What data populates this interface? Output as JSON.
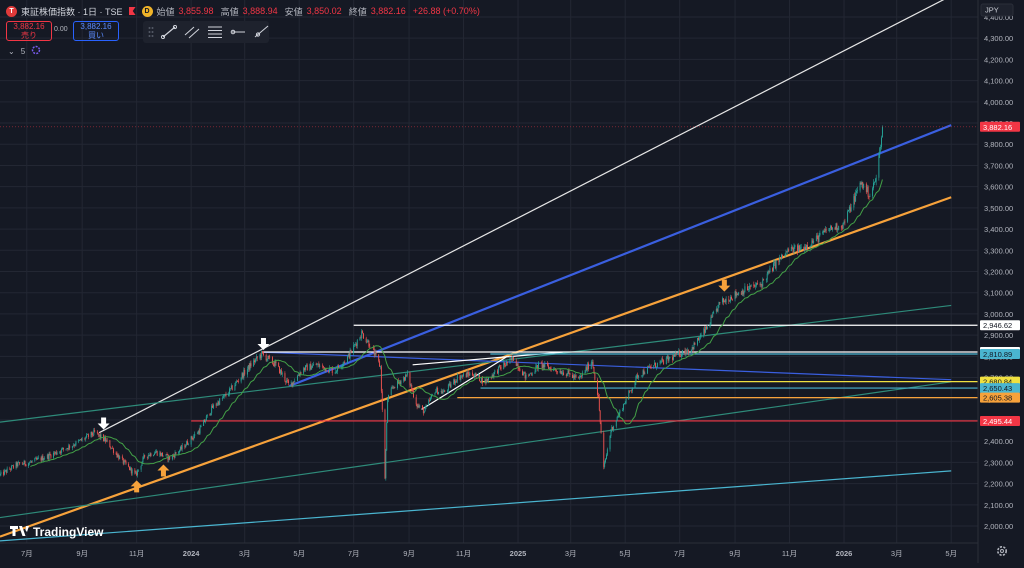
{
  "header": {
    "symbol": "東証株価指数 · 1日 · TSE",
    "ohlc": [
      {
        "label": "始値",
        "value": "3,855.98"
      },
      {
        "label": "高値",
        "value": "3,888.94"
      },
      {
        "label": "安値",
        "value": "3,850.02"
      },
      {
        "label": "終値",
        "value": "3,882.16"
      }
    ],
    "change": "+26.88 (+0.70%)",
    "sell_price": "3,882.16",
    "sell_label": "売り",
    "buy_price": "3,882.16",
    "buy_label": "買い",
    "spread": "0.00",
    "indicator_count": "5",
    "currency": "JPY",
    "watermark": "TradingView"
  },
  "colors": {
    "background": "#151924",
    "grid": "#232733",
    "up": "#26a69a",
    "down": "#ef5350",
    "white_channel": "#e6e6e6",
    "blue_channel": "#3a5fe0",
    "orange_channel": "#f7a23b",
    "teal_channel": "#2e8b7a",
    "cyan_channel": "#4ab5d0",
    "ma": "#43a047",
    "marker_white": "#ffffff",
    "marker_orange": "#f7a23b"
  },
  "chart_data": {
    "type": "candlestick",
    "title": "",
    "xlabel": "",
    "ylabel": "",
    "ylim": [
      1920,
      4480
    ],
    "y_ticks": [
      "2,000.00",
      "2,100.00",
      "2,200.00",
      "2,300.00",
      "2,400.00",
      "2,500.00",
      "2,600.00",
      "2,700.00",
      "2,800.00",
      "2,900.00",
      "3,000.00",
      "3,100.00",
      "3,200.00",
      "3,300.00",
      "3,400.00",
      "3,500.00",
      "3,600.00",
      "3,700.00",
      "3,800.00",
      "3,900.00",
      "4,000.00",
      "4,100.00",
      "4,200.00",
      "4,300.00",
      "4,400.00"
    ],
    "x_ticks": [
      {
        "label": "7月",
        "date": "2023-07-01"
      },
      {
        "label": "9月",
        "date": "2023-09-01"
      },
      {
        "label": "11月",
        "date": "2023-11-01"
      },
      {
        "label": "2024",
        "date": "2024-01-01",
        "bold": true
      },
      {
        "label": "3月",
        "date": "2024-03-01"
      },
      {
        "label": "5月",
        "date": "2024-05-01"
      },
      {
        "label": "7月",
        "date": "2024-07-01"
      },
      {
        "label": "9月",
        "date": "2024-09-01"
      },
      {
        "label": "11月",
        "date": "2024-11-01"
      },
      {
        "label": "2025",
        "date": "2025-01-01",
        "bold": true
      },
      {
        "label": "3月",
        "date": "2025-03-01"
      },
      {
        "label": "5月",
        "date": "2025-05-01"
      },
      {
        "label": "7月",
        "date": "2025-07-01"
      },
      {
        "label": "9月",
        "date": "2025-09-01"
      },
      {
        "label": "11月",
        "date": "2025-11-01"
      },
      {
        "label": "2026",
        "date": "2026-01-01",
        "bold": true
      },
      {
        "label": "3月",
        "date": "2026-03-01"
      },
      {
        "label": "5月",
        "date": "2026-05-01"
      }
    ],
    "price_anchors": [
      [
        "2023-06-01",
        2240
      ],
      [
        "2023-06-20",
        2290
      ],
      [
        "2023-07-05",
        2300
      ],
      [
        "2023-07-25",
        2330
      ],
      [
        "2023-08-10",
        2360
      ],
      [
        "2023-08-25",
        2390
      ],
      [
        "2023-09-15",
        2440
      ],
      [
        "2023-09-28",
        2400
      ],
      [
        "2023-10-15",
        2310
      ],
      [
        "2023-10-31",
        2240
      ],
      [
        "2023-11-10",
        2330
      ],
      [
        "2023-11-22",
        2350
      ],
      [
        "2023-12-08",
        2320
      ],
      [
        "2023-12-20",
        2360
      ],
      [
        "2024-01-10",
        2450
      ],
      [
        "2024-01-25",
        2560
      ],
      [
        "2024-02-10",
        2620
      ],
      [
        "2024-02-25",
        2700
      ],
      [
        "2024-03-10",
        2770
      ],
      [
        "2024-03-20",
        2810
      ],
      [
        "2024-04-05",
        2760
      ],
      [
        "2024-04-20",
        2660
      ],
      [
        "2024-05-05",
        2740
      ],
      [
        "2024-05-20",
        2760
      ],
      [
        "2024-06-10",
        2730
      ],
      [
        "2024-06-25",
        2800
      ],
      [
        "2024-07-10",
        2910
      ],
      [
        "2024-07-20",
        2850
      ],
      [
        "2024-07-31",
        2750
      ],
      [
        "2024-08-05",
        2230
      ],
      [
        "2024-08-08",
        2600
      ],
      [
        "2024-08-15",
        2660
      ],
      [
        "2024-08-30",
        2710
      ],
      [
        "2024-09-10",
        2570
      ],
      [
        "2024-09-18",
        2540
      ],
      [
        "2024-09-30",
        2640
      ],
      [
        "2024-10-10",
        2630
      ],
      [
        "2024-10-25",
        2700
      ],
      [
        "2024-11-10",
        2720
      ],
      [
        "2024-11-25",
        2680
      ],
      [
        "2024-12-10",
        2740
      ],
      [
        "2024-12-27",
        2790
      ],
      [
        "2025-01-10",
        2700
      ],
      [
        "2025-01-25",
        2760
      ],
      [
        "2025-02-10",
        2740
      ],
      [
        "2025-02-25",
        2720
      ],
      [
        "2025-03-10",
        2690
      ],
      [
        "2025-03-25",
        2780
      ],
      [
        "2025-04-01",
        2600
      ],
      [
        "2025-04-07",
        2270
      ],
      [
        "2025-04-15",
        2450
      ],
      [
        "2025-04-30",
        2580
      ],
      [
        "2025-05-15",
        2710
      ],
      [
        "2025-05-30",
        2750
      ],
      [
        "2025-06-15",
        2780
      ],
      [
        "2025-06-30",
        2810
      ],
      [
        "2025-07-15",
        2840
      ],
      [
        "2025-07-31",
        2930
      ],
      [
        "2025-08-15",
        3050
      ],
      [
        "2025-08-31",
        3090
      ],
      [
        "2025-09-15",
        3120
      ],
      [
        "2025-09-30",
        3140
      ],
      [
        "2025-10-15",
        3230
      ],
      [
        "2025-10-31",
        3300
      ],
      [
        "2025-11-15",
        3310
      ],
      [
        "2025-11-30",
        3350
      ],
      [
        "2025-12-15",
        3400
      ],
      [
        "2025-12-31",
        3420
      ],
      [
        "2026-01-10",
        3520
      ],
      [
        "2026-01-20",
        3620
      ],
      [
        "2026-01-30",
        3560
      ],
      [
        "2026-02-06",
        3640
      ],
      [
        "2026-02-10",
        3770
      ],
      [
        "2026-02-13",
        3882.16
      ]
    ],
    "current_price": {
      "label": "3,882.16",
      "value": 3882.16
    },
    "horizontal_levels": [
      {
        "value": 2946.62,
        "label": "2,946.62",
        "color": "#ffffff",
        "start": "2024-07-01"
      },
      {
        "value": 2820.4,
        "label": "2,820.40",
        "color": "#ffffff",
        "start": "2024-03-20"
      },
      {
        "value": 2810.89,
        "label": "2,810.89",
        "color": "#4ab5d0",
        "start": "2024-12-01"
      },
      {
        "value": 2680.84,
        "label": "2,680.84",
        "color": "#f0e040",
        "start": "2024-11-20"
      },
      {
        "value": 2650.43,
        "label": "2,650.43",
        "color": "#4ab5d0",
        "start": "2024-11-20"
      },
      {
        "value": 2605.38,
        "label": "2,605.38",
        "color": "#f7a23b",
        "start": "2024-10-25"
      },
      {
        "value": 2495.44,
        "label": "2,495.44",
        "color": "#f23645",
        "start": "2024-01-01"
      }
    ],
    "trend_lines": [
      {
        "name": "white-channel",
        "color": "#e6e6e6",
        "p1": [
          "2023-09-20",
          2440
        ],
        "p2": [
          "2026-05-01",
          4500
        ]
      },
      {
        "name": "blue-channel",
        "color": "#3a5fe0",
        "p1": [
          "2024-04-20",
          2660
        ],
        "p2": [
          "2026-05-01",
          3890
        ]
      },
      {
        "name": "orange-channel",
        "color": "#f7a23b",
        "p1": [
          "2023-06-01",
          1950
        ],
        "p2": [
          "2026-05-01",
          3550
        ]
      },
      {
        "name": "teal-upper",
        "color": "#2e8b7a",
        "p1": [
          "2023-06-01",
          2490
        ],
        "p2": [
          "2026-05-01",
          3040
        ]
      },
      {
        "name": "teal-lower",
        "color": "#2e8b7a",
        "p1": [
          "2023-06-01",
          2040
        ],
        "p2": [
          "2026-05-01",
          2680
        ]
      },
      {
        "name": "cyan-bottom",
        "color": "#4ab5d0",
        "p1": [
          "2023-06-01",
          1930
        ],
        "p2": [
          "2026-05-01",
          2260
        ]
      },
      {
        "name": "blue-descending",
        "color": "#3a5fe0",
        "p1": [
          "2024-03-20",
          2820
        ],
        "p2": [
          "2026-05-01",
          2690
        ]
      },
      {
        "name": "white-wedge-low",
        "color": "#ffffff",
        "p1": [
          "2024-09-15",
          2550
        ],
        "p2": [
          "2024-12-20",
          2800
        ]
      },
      {
        "name": "white-wedge-top",
        "color": "#ffffff",
        "p1": [
          "2024-09-05",
          2760
        ],
        "p2": [
          "2025-02-20",
          2820
        ]
      }
    ],
    "markers": [
      {
        "date": "2023-09-25",
        "value": 2455,
        "type": "arrow-down",
        "color": "#ffffff"
      },
      {
        "date": "2024-03-22",
        "value": 2830,
        "type": "arrow-down",
        "color": "#ffffff"
      },
      {
        "date": "2023-11-01",
        "value": 2215,
        "type": "arrow-up",
        "color": "#f7a23b"
      },
      {
        "date": "2023-12-01",
        "value": 2290,
        "type": "arrow-up",
        "color": "#f7a23b"
      },
      {
        "date": "2025-08-20",
        "value": 3105,
        "type": "arrow-down",
        "color": "#f7a23b"
      }
    ]
  }
}
